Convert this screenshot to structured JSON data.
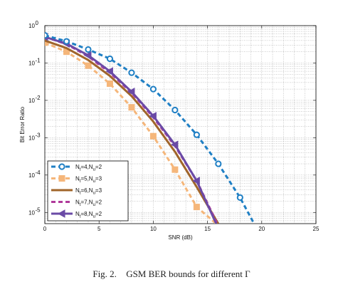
{
  "chart_data": {
    "type": "line",
    "xlabel": "SNR (dB)",
    "ylabel": "Bit Error Ratio",
    "xlim": [
      0,
      25
    ],
    "ylim_log10": [
      -5.3,
      0
    ],
    "log_y": true,
    "grid": "major and minor, dotted",
    "legend_placement": "bottom-left",
    "x_ticks": [
      "0",
      "5",
      "10",
      "15",
      "20",
      "25"
    ],
    "y_ticks": [
      {
        "base": "10",
        "exp": "0",
        "value": 1
      },
      {
        "base": "10",
        "exp": "-1",
        "value": 0.1
      },
      {
        "base": "10",
        "exp": "-2",
        "value": 0.01
      },
      {
        "base": "10",
        "exp": "-3",
        "value": 0.001
      },
      {
        "base": "10",
        "exp": "-4",
        "value": 0.0001
      },
      {
        "base": "10",
        "exp": "-5",
        "value": 1e-05
      }
    ],
    "series": [
      {
        "legend": {
          "a": "N",
          "a_sub": "t",
          "b": "=4,N",
          "b_sub": "u",
          "c": "=2"
        },
        "color": "#1f7fc4",
        "dash": "dashed",
        "marker": "circle",
        "x": [
          0,
          2,
          4,
          6,
          8,
          10,
          12,
          14,
          16,
          18,
          19.3
        ],
        "y": [
          0.55,
          0.38,
          0.23,
          0.13,
          0.055,
          0.02,
          0.0055,
          0.0012,
          0.0002,
          2.5e-05,
          5e-06
        ],
        "marker_x": [
          0,
          2,
          4,
          6,
          8,
          10,
          12,
          14,
          16,
          18
        ]
      },
      {
        "legend": {
          "a": "N",
          "a_sub": "t",
          "b": "=5,N",
          "b_sub": "u",
          "c": "=3"
        },
        "color": "#f5b67a",
        "dash": "dashed",
        "marker": "square",
        "x": [
          0,
          2,
          4,
          6,
          8,
          10,
          12,
          14,
          15.8
        ],
        "y": [
          0.35,
          0.2,
          0.085,
          0.028,
          0.0065,
          0.0011,
          0.00014,
          1.4e-05,
          5e-06
        ],
        "marker_x": [
          0,
          2,
          4,
          6,
          8,
          10,
          12,
          14
        ]
      },
      {
        "legend": {
          "a": "N",
          "a_sub": "t",
          "b": "=6,N",
          "b_sub": "u",
          "c": "=3"
        },
        "color": "#a0652a",
        "dash": "solid",
        "marker": "none",
        "x": [
          0,
          2,
          4,
          6,
          8,
          10,
          12,
          14,
          16
        ],
        "y": [
          0.4,
          0.25,
          0.12,
          0.045,
          0.013,
          0.0027,
          0.00042,
          4.8e-05,
          5e-06
        ],
        "marker_x": []
      },
      {
        "legend": {
          "a": "N",
          "a_sub": "t",
          "b": "=7,N",
          "b_sub": "u",
          "c": "=2"
        },
        "color": "#b03a9a",
        "dash": "dashed",
        "marker": "none",
        "x": [
          0,
          2,
          4,
          6,
          8,
          10,
          12,
          14,
          15.9
        ],
        "y": [
          0.5,
          0.32,
          0.15,
          0.055,
          0.016,
          0.0035,
          0.0006,
          7e-05,
          5e-06
        ],
        "marker_x": []
      },
      {
        "legend": {
          "a": "N",
          "a_sub": "t",
          "b": "=8,N",
          "b_sub": "u",
          "c": "=2"
        },
        "color": "#6a4aa6",
        "dash": "solid",
        "marker": "triangle-left",
        "x": [
          0,
          2,
          4,
          6,
          8,
          10,
          12,
          14,
          15.8
        ],
        "y": [
          0.5,
          0.33,
          0.16,
          0.06,
          0.017,
          0.0038,
          0.00065,
          7e-05,
          5e-06
        ],
        "marker_x": [
          0,
          2,
          4,
          6,
          8,
          10,
          12,
          14
        ]
      }
    ]
  },
  "caption": {
    "figure_label": "Fig. 2.",
    "text": "GSM BER bounds for different Γ"
  }
}
